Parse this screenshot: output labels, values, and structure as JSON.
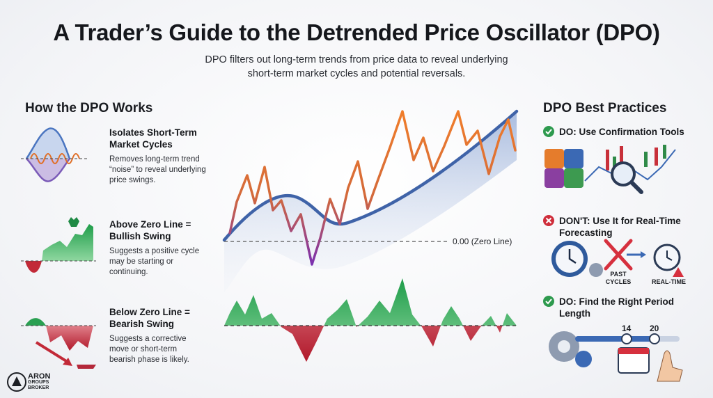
{
  "header": {
    "title": "A Trader’s Guide to the Detrended Price Oscillator (DPO)",
    "subtitle": "DPO filters out long-term trends from price data to reveal underlying short-term market cycles and potential reversals."
  },
  "how_it_works": {
    "heading": "How the DPO Works",
    "items": [
      {
        "title": "Isolates Short-Term Market Cycles",
        "description": "Removes long-term trend “noise” to reveal underlying price swings."
      },
      {
        "title": "Above Zero Line = Bullish Swing",
        "description": "Suggests a positive cycle may be starting or continuing."
      },
      {
        "title": "Below Zero Line = Bearish Swing",
        "description": "Suggests a corrective move or short-term bearish phase is likely."
      }
    ]
  },
  "center": {
    "zero_line_label": "0.00 (Zero Line)"
  },
  "best_practices": {
    "heading": "DPO Best Practices",
    "items": [
      {
        "title": "DO: Use Confirmation Tools"
      },
      {
        "title": "DON'T: Use It for Real-Time Forecasting",
        "icon_labels": [
          "PAST CYCLES",
          "REAL-TIME"
        ]
      },
      {
        "title": "DO: Find the Right Period Length",
        "icon_labels": [
          "14",
          "20"
        ]
      }
    ]
  },
  "logo": {
    "lines": [
      "ARON",
      "GROUPS",
      "BROKER"
    ]
  }
}
